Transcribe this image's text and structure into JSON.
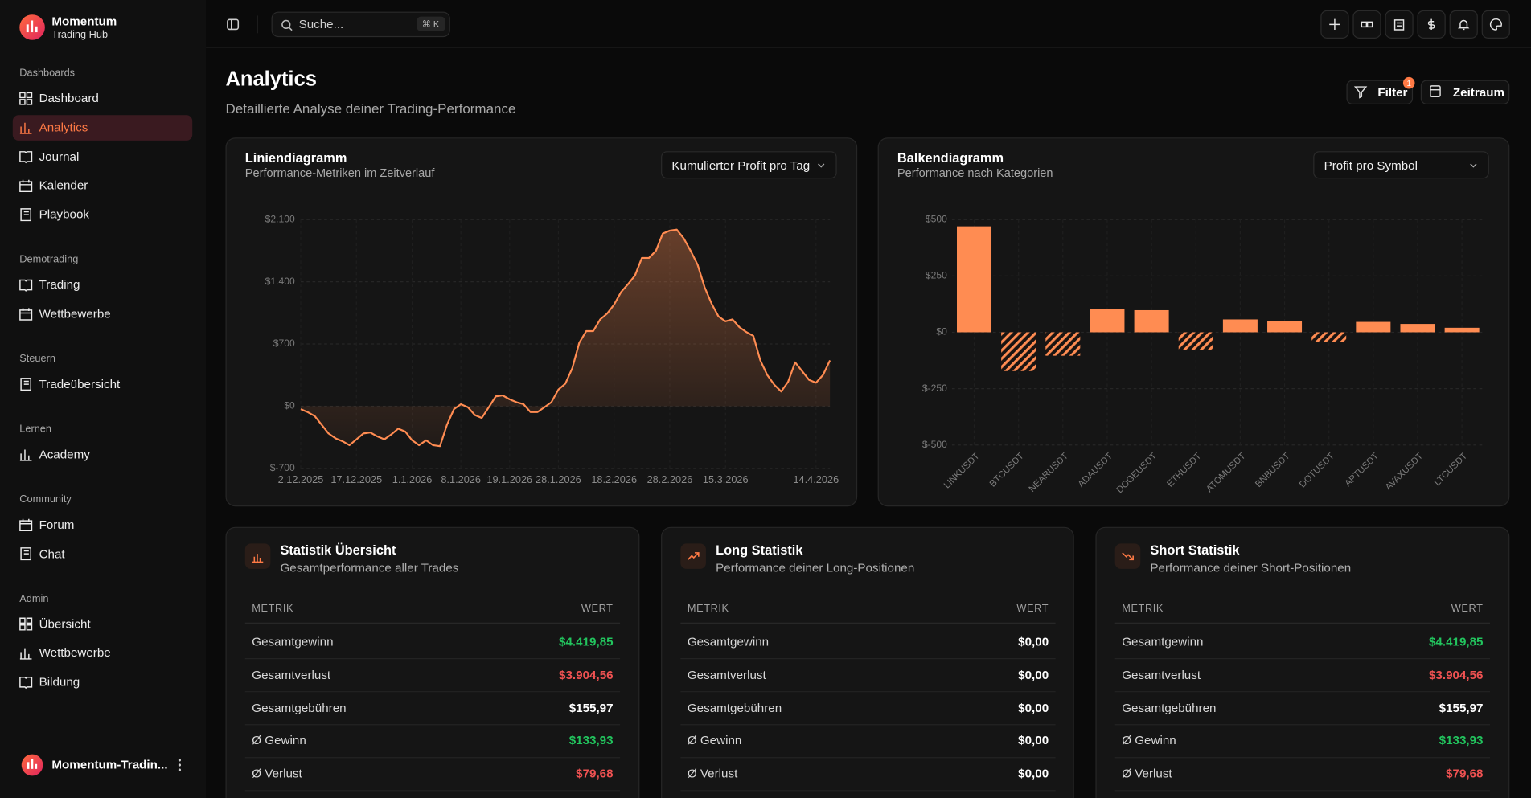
{
  "sidebar": {
    "brand": {
      "name": "Momentum",
      "tagline": "Trading Hub"
    },
    "active": {
      "section": 0,
      "item": 1
    },
    "sections": [
      {
        "title": "Dashboards",
        "items": [
          "Dashboard",
          "Analytics",
          "Journal",
          "Kalender",
          "Playbook"
        ]
      },
      {
        "title": "Demotrading",
        "items": [
          "Trading",
          "Wettbewerbe"
        ]
      },
      {
        "title": "Steuern",
        "items": [
          "Tradeübersicht"
        ]
      },
      {
        "title": "Lernen",
        "items": [
          "Academy"
        ]
      },
      {
        "title": "Community",
        "items": [
          "Forum",
          "Chat"
        ]
      },
      {
        "title": "Admin",
        "items": [
          "Übersicht",
          "Wettbewerbe",
          "Bildung"
        ]
      }
    ],
    "user": "Momentum-Tradin..."
  },
  "header": {
    "search_placeholder": "Suche...",
    "shortcut": "⌘ K"
  },
  "page": {
    "title": "Analytics",
    "subtitle": "Detaillierte Analyse deiner Trading-Performance",
    "filter": "Filter",
    "filter_badge": 1,
    "period": "Zeitraum"
  },
  "chart_data": [
    {
      "type": "line",
      "title": "Liniendiagramm",
      "subtitle": "Performance-Metriken im Zeitverlauf",
      "selector": "Kumulierter Profit pro Tag",
      "color": "#ff8c52",
      "grid": true,
      "ylim": [
        -700,
        2100
      ],
      "yticks": [
        {
          "value": 2100,
          "label": "$2.100"
        },
        {
          "value": 1400,
          "label": "$1.400"
        },
        {
          "value": 700,
          "label": "$700"
        },
        {
          "value": 0,
          "label": "$0"
        },
        {
          "value": -700,
          "label": "$-700"
        }
      ],
      "categories": [
        "2.12.2025",
        null,
        null,
        null,
        null,
        null,
        null,
        null,
        "17.12.2025",
        null,
        null,
        null,
        null,
        null,
        null,
        null,
        "1.1.2026",
        null,
        null,
        null,
        null,
        null,
        null,
        "8.1.2026",
        null,
        null,
        null,
        null,
        null,
        null,
        "19.1.2026",
        null,
        null,
        null,
        null,
        null,
        null,
        "28.1.2026",
        null,
        null,
        null,
        null,
        null,
        null,
        null,
        "18.2.2026",
        null,
        null,
        null,
        null,
        null,
        null,
        null,
        "28.2.2026",
        null,
        null,
        null,
        null,
        null,
        null,
        null,
        "15.3.2026",
        null,
        null,
        null,
        null,
        null,
        null,
        null,
        null,
        null,
        null,
        null,
        null,
        "14.4.2026",
        null,
        null
      ],
      "values": [
        -33,
        -66,
        -110,
        -209,
        -307,
        -362,
        -395,
        -439,
        -373,
        -307,
        -296,
        -340,
        -373,
        -318,
        -253,
        -285,
        -384,
        -439,
        -384,
        -439,
        -450,
        -209,
        -33,
        22,
        -11,
        -99,
        -132,
        -11,
        110,
        121,
        77,
        44,
        22,
        -66,
        -66,
        -11,
        44,
        187,
        253,
        428,
        714,
        845,
        845,
        977,
        1043,
        1142,
        1285,
        1373,
        1471,
        1669,
        1669,
        1746,
        1943,
        1976,
        1987,
        1889,
        1746,
        1592,
        1340,
        1153,
        1010,
        955,
        977,
        889,
        834,
        790,
        516,
        351,
        242,
        165,
        275,
        494,
        395,
        296,
        264,
        351,
        516
      ]
    },
    {
      "type": "bar",
      "title": "Balkendiagramm",
      "subtitle": "Performance nach Kategorien",
      "selector": "Profit pro Symbol",
      "color": "#ff8c52",
      "grid": true,
      "ylim": [
        -500,
        500
      ],
      "yticks": [
        {
          "value": 500,
          "label": "$500"
        },
        {
          "value": 250,
          "label": "$250"
        },
        {
          "value": 0,
          "label": "$0"
        },
        {
          "value": -250,
          "label": "$-250"
        },
        {
          "value": -500,
          "label": "$-500"
        }
      ],
      "categories": [
        "LINKUSDT",
        "BTCUSDT",
        "NEARUSDT",
        "ADAUSDT",
        "DOGEUSDT",
        "ETHUSDT",
        "ATOMUSDT",
        "BNBUSDT",
        "DOTUSDT",
        "APTUSDT",
        "AVAXUSDT",
        "LTCUSDT"
      ],
      "values": [
        470,
        -172,
        -104,
        102,
        98,
        -78,
        57,
        48,
        -43,
        46,
        37,
        20
      ]
    }
  ],
  "stats": [
    {
      "title": "Statistik Übersicht",
      "subtitle": "Gesamtperformance aller Trades",
      "columns": [
        "METRIK",
        "WERT"
      ],
      "rows": [
        [
          "Gesamtgewinn",
          "$4.419,85"
        ],
        [
          "Gesamtverlust",
          "$3.904,56"
        ],
        [
          "Gesamtgebühren",
          "$155,97"
        ],
        [
          "Ø Gewinn",
          "$133,93"
        ],
        [
          "Ø Verlust",
          "$79,68"
        ]
      ],
      "value_colors": [
        "#22c55e",
        "#f05252",
        "#ffffff",
        "#22c55e",
        "#f05252"
      ]
    },
    {
      "title": "Long Statistik",
      "subtitle": "Performance deiner Long-Positionen",
      "columns": [
        "METRIK",
        "WERT"
      ],
      "rows": [
        [
          "Gesamtgewinn",
          "$0,00"
        ],
        [
          "Gesamtverlust",
          "$0,00"
        ],
        [
          "Gesamtgebühren",
          "$0,00"
        ],
        [
          "Ø Gewinn",
          "$0,00"
        ],
        [
          "Ø Verlust",
          "$0,00"
        ]
      ],
      "value_colors": [
        "#ffffff",
        "#ffffff",
        "#ffffff",
        "#ffffff",
        "#ffffff"
      ]
    },
    {
      "title": "Short Statistik",
      "subtitle": "Performance deiner Short-Positionen",
      "columns": [
        "METRIK",
        "WERT"
      ],
      "rows": [
        [
          "Gesamtgewinn",
          "$4.419,85"
        ],
        [
          "Gesamtverlust",
          "$3.904,56"
        ],
        [
          "Gesamtgebühren",
          "$155,97"
        ],
        [
          "Ø Gewinn",
          "$133,93"
        ],
        [
          "Ø Verlust",
          "$79,68"
        ]
      ],
      "value_colors": [
        "#22c55e",
        "#f05252",
        "#ffffff",
        "#22c55e",
        "#f05252"
      ]
    }
  ]
}
